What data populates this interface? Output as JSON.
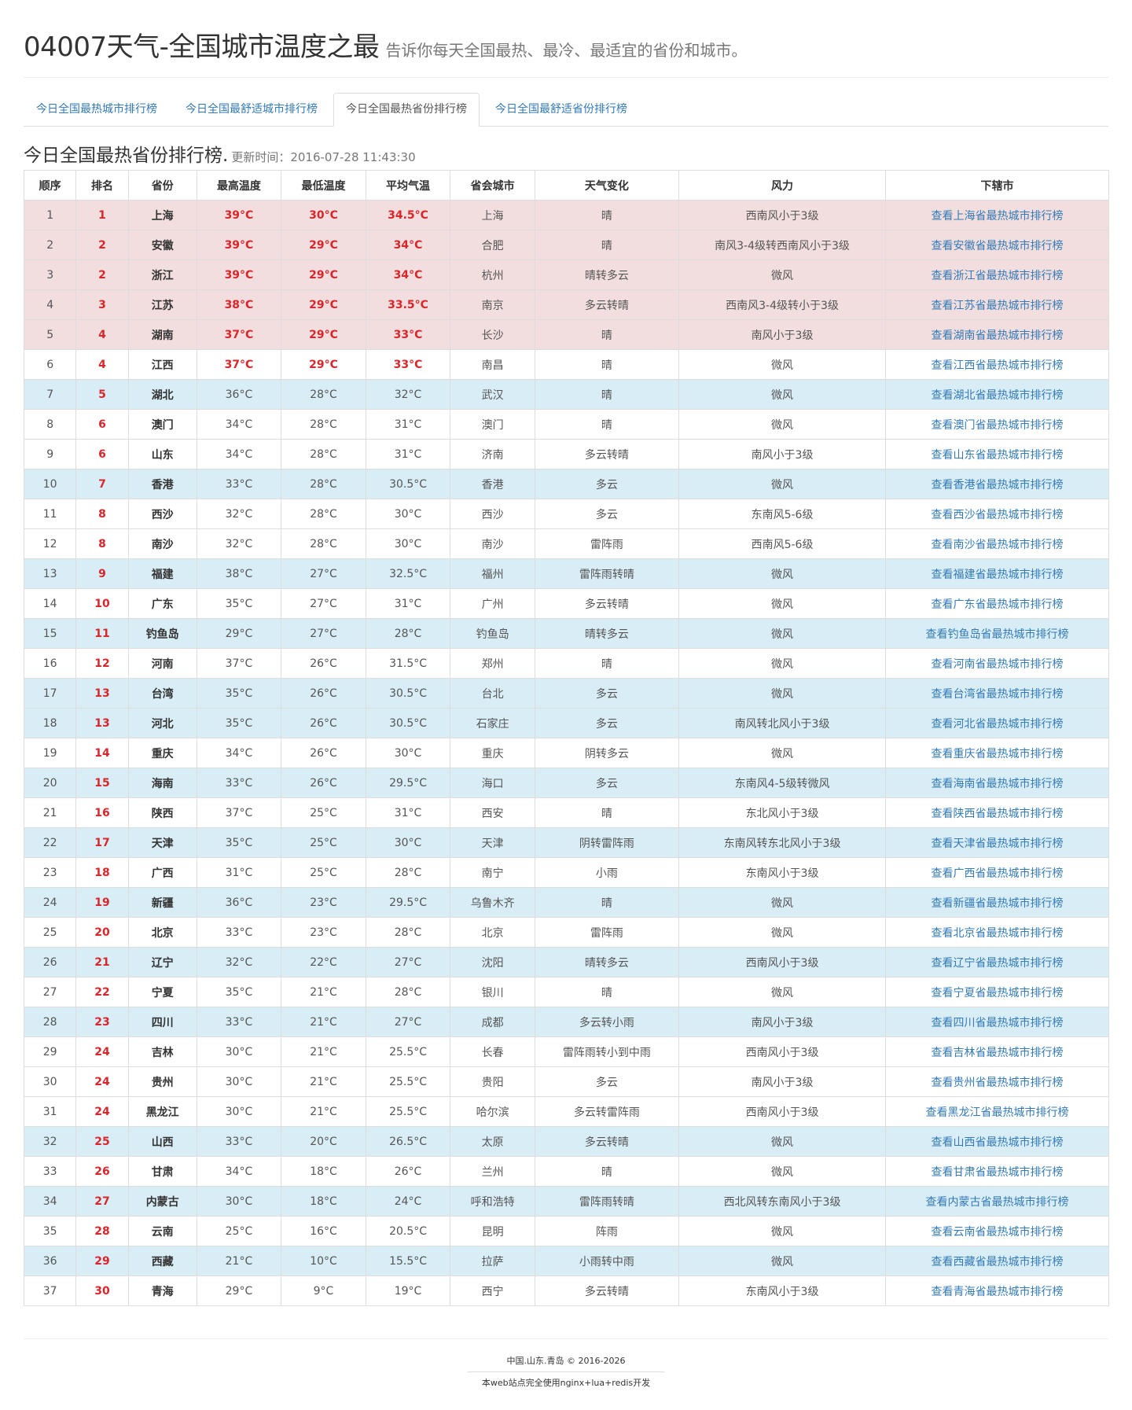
{
  "header": {
    "title": "04007天气-全国城市温度之最",
    "subtitle": "告诉你每天全国最热、最冷、最适宜的省份和城市。"
  },
  "tabs": [
    {
      "label": "今日全国最热城市排行榜",
      "active": false
    },
    {
      "label": "今日全国最舒适城市排行榜",
      "active": false
    },
    {
      "label": "今日全国最热省份排行榜",
      "active": true
    },
    {
      "label": "今日全国最舒适省份排行榜",
      "active": false
    }
  ],
  "section": {
    "title": "今日全国最热省份排行榜.",
    "updated": "更新时间：2016-07-28 11:43:30"
  },
  "table": {
    "columns": [
      "顺序",
      "排名",
      "省份",
      "最高温度",
      "最低温度",
      "平均气温",
      "省会城市",
      "天气变化",
      "风力",
      "下辖市"
    ],
    "rows": [
      {
        "seq": "1",
        "rank": "1",
        "province": "上海",
        "high": "39°C",
        "low": "30°C",
        "avg": "34.5°C",
        "capital": "上海",
        "weather": "晴",
        "wind": "西南风小于3级",
        "link": "查看上海省最热城市排行榜",
        "style": "danger"
      },
      {
        "seq": "2",
        "rank": "2",
        "province": "安徽",
        "high": "39°C",
        "low": "29°C",
        "avg": "34°C",
        "capital": "合肥",
        "weather": "晴",
        "wind": "南风3-4级转西南风小于3级",
        "link": "查看安徽省最热城市排行榜",
        "style": "danger"
      },
      {
        "seq": "3",
        "rank": "2",
        "province": "浙江",
        "high": "39°C",
        "low": "29°C",
        "avg": "34°C",
        "capital": "杭州",
        "weather": "晴转多云",
        "wind": "微风",
        "link": "查看浙江省最热城市排行榜",
        "style": "danger"
      },
      {
        "seq": "4",
        "rank": "3",
        "province": "江苏",
        "high": "38°C",
        "low": "29°C",
        "avg": "33.5°C",
        "capital": "南京",
        "weather": "多云转晴",
        "wind": "西南风3-4级转小于3级",
        "link": "查看江苏省最热城市排行榜",
        "style": "danger"
      },
      {
        "seq": "5",
        "rank": "4",
        "province": "湖南",
        "high": "37°C",
        "low": "29°C",
        "avg": "33°C",
        "capital": "长沙",
        "weather": "晴",
        "wind": "南风小于3级",
        "link": "查看湖南省最热城市排行榜",
        "style": "danger"
      },
      {
        "seq": "6",
        "rank": "4",
        "province": "江西",
        "high": "37°C",
        "low": "29°C",
        "avg": "33°C",
        "capital": "南昌",
        "weather": "晴",
        "wind": "微风",
        "link": "查看江西省最热城市排行榜",
        "style": "hot"
      },
      {
        "seq": "7",
        "rank": "5",
        "province": "湖北",
        "high": "36°C",
        "low": "28°C",
        "avg": "32°C",
        "capital": "武汉",
        "weather": "晴",
        "wind": "微风",
        "link": "查看湖北省最热城市排行榜",
        "style": "info"
      },
      {
        "seq": "8",
        "rank": "6",
        "province": "澳门",
        "high": "34°C",
        "low": "28°C",
        "avg": "31°C",
        "capital": "澳门",
        "weather": "晴",
        "wind": "微风",
        "link": "查看澳门省最热城市排行榜",
        "style": ""
      },
      {
        "seq": "9",
        "rank": "6",
        "province": "山东",
        "high": "34°C",
        "low": "28°C",
        "avg": "31°C",
        "capital": "济南",
        "weather": "多云转晴",
        "wind": "南风小于3级",
        "link": "查看山东省最热城市排行榜",
        "style": ""
      },
      {
        "seq": "10",
        "rank": "7",
        "province": "香港",
        "high": "33°C",
        "low": "28°C",
        "avg": "30.5°C",
        "capital": "香港",
        "weather": "多云",
        "wind": "微风",
        "link": "查看香港省最热城市排行榜",
        "style": "info"
      },
      {
        "seq": "11",
        "rank": "8",
        "province": "西沙",
        "high": "32°C",
        "low": "28°C",
        "avg": "30°C",
        "capital": "西沙",
        "weather": "多云",
        "wind": "东南风5-6级",
        "link": "查看西沙省最热城市排行榜",
        "style": ""
      },
      {
        "seq": "12",
        "rank": "8",
        "province": "南沙",
        "high": "32°C",
        "low": "28°C",
        "avg": "30°C",
        "capital": "南沙",
        "weather": "雷阵雨",
        "wind": "西南风5-6级",
        "link": "查看南沙省最热城市排行榜",
        "style": ""
      },
      {
        "seq": "13",
        "rank": "9",
        "province": "福建",
        "high": "38°C",
        "low": "27°C",
        "avg": "32.5°C",
        "capital": "福州",
        "weather": "雷阵雨转晴",
        "wind": "微风",
        "link": "查看福建省最热城市排行榜",
        "style": "info"
      },
      {
        "seq": "14",
        "rank": "10",
        "province": "广东",
        "high": "35°C",
        "low": "27°C",
        "avg": "31°C",
        "capital": "广州",
        "weather": "多云转晴",
        "wind": "微风",
        "link": "查看广东省最热城市排行榜",
        "style": ""
      },
      {
        "seq": "15",
        "rank": "11",
        "province": "钓鱼岛",
        "high": "29°C",
        "low": "27°C",
        "avg": "28°C",
        "capital": "钓鱼岛",
        "weather": "晴转多云",
        "wind": "微风",
        "link": "查看钓鱼岛省最热城市排行榜",
        "style": "info"
      },
      {
        "seq": "16",
        "rank": "12",
        "province": "河南",
        "high": "37°C",
        "low": "26°C",
        "avg": "31.5°C",
        "capital": "郑州",
        "weather": "晴",
        "wind": "微风",
        "link": "查看河南省最热城市排行榜",
        "style": ""
      },
      {
        "seq": "17",
        "rank": "13",
        "province": "台湾",
        "high": "35°C",
        "low": "26°C",
        "avg": "30.5°C",
        "capital": "台北",
        "weather": "多云",
        "wind": "微风",
        "link": "查看台湾省最热城市排行榜",
        "style": "info"
      },
      {
        "seq": "18",
        "rank": "13",
        "province": "河北",
        "high": "35°C",
        "low": "26°C",
        "avg": "30.5°C",
        "capital": "石家庄",
        "weather": "多云",
        "wind": "南风转北风小于3级",
        "link": "查看河北省最热城市排行榜",
        "style": "info"
      },
      {
        "seq": "19",
        "rank": "14",
        "province": "重庆",
        "high": "34°C",
        "low": "26°C",
        "avg": "30°C",
        "capital": "重庆",
        "weather": "阴转多云",
        "wind": "微风",
        "link": "查看重庆省最热城市排行榜",
        "style": ""
      },
      {
        "seq": "20",
        "rank": "15",
        "province": "海南",
        "high": "33°C",
        "low": "26°C",
        "avg": "29.5°C",
        "capital": "海口",
        "weather": "多云",
        "wind": "东南风4-5级转微风",
        "link": "查看海南省最热城市排行榜",
        "style": "info"
      },
      {
        "seq": "21",
        "rank": "16",
        "province": "陕西",
        "high": "37°C",
        "low": "25°C",
        "avg": "31°C",
        "capital": "西安",
        "weather": "晴",
        "wind": "东北风小于3级",
        "link": "查看陕西省最热城市排行榜",
        "style": ""
      },
      {
        "seq": "22",
        "rank": "17",
        "province": "天津",
        "high": "35°C",
        "low": "25°C",
        "avg": "30°C",
        "capital": "天津",
        "weather": "阴转雷阵雨",
        "wind": "东南风转东北风小于3级",
        "link": "查看天津省最热城市排行榜",
        "style": "info"
      },
      {
        "seq": "23",
        "rank": "18",
        "province": "广西",
        "high": "31°C",
        "low": "25°C",
        "avg": "28°C",
        "capital": "南宁",
        "weather": "小雨",
        "wind": "东南风小于3级",
        "link": "查看广西省最热城市排行榜",
        "style": ""
      },
      {
        "seq": "24",
        "rank": "19",
        "province": "新疆",
        "high": "36°C",
        "low": "23°C",
        "avg": "29.5°C",
        "capital": "乌鲁木齐",
        "weather": "晴",
        "wind": "微风",
        "link": "查看新疆省最热城市排行榜",
        "style": "info"
      },
      {
        "seq": "25",
        "rank": "20",
        "province": "北京",
        "high": "33°C",
        "low": "23°C",
        "avg": "28°C",
        "capital": "北京",
        "weather": "雷阵雨",
        "wind": "微风",
        "link": "查看北京省最热城市排行榜",
        "style": ""
      },
      {
        "seq": "26",
        "rank": "21",
        "province": "辽宁",
        "high": "32°C",
        "low": "22°C",
        "avg": "27°C",
        "capital": "沈阳",
        "weather": "晴转多云",
        "wind": "西南风小于3级",
        "link": "查看辽宁省最热城市排行榜",
        "style": "info"
      },
      {
        "seq": "27",
        "rank": "22",
        "province": "宁夏",
        "high": "35°C",
        "low": "21°C",
        "avg": "28°C",
        "capital": "银川",
        "weather": "晴",
        "wind": "微风",
        "link": "查看宁夏省最热城市排行榜",
        "style": ""
      },
      {
        "seq": "28",
        "rank": "23",
        "province": "四川",
        "high": "33°C",
        "low": "21°C",
        "avg": "27°C",
        "capital": "成都",
        "weather": "多云转小雨",
        "wind": "南风小于3级",
        "link": "查看四川省最热城市排行榜",
        "style": "info"
      },
      {
        "seq": "29",
        "rank": "24",
        "province": "吉林",
        "high": "30°C",
        "low": "21°C",
        "avg": "25.5°C",
        "capital": "长春",
        "weather": "雷阵雨转小到中雨",
        "wind": "西南风小于3级",
        "link": "查看吉林省最热城市排行榜",
        "style": ""
      },
      {
        "seq": "30",
        "rank": "24",
        "province": "贵州",
        "high": "30°C",
        "low": "21°C",
        "avg": "25.5°C",
        "capital": "贵阳",
        "weather": "多云",
        "wind": "南风小于3级",
        "link": "查看贵州省最热城市排行榜",
        "style": ""
      },
      {
        "seq": "31",
        "rank": "24",
        "province": "黑龙江",
        "high": "30°C",
        "low": "21°C",
        "avg": "25.5°C",
        "capital": "哈尔滨",
        "weather": "多云转雷阵雨",
        "wind": "西南风小于3级",
        "link": "查看黑龙江省最热城市排行榜",
        "style": ""
      },
      {
        "seq": "32",
        "rank": "25",
        "province": "山西",
        "high": "33°C",
        "low": "20°C",
        "avg": "26.5°C",
        "capital": "太原",
        "weather": "多云转晴",
        "wind": "微风",
        "link": "查看山西省最热城市排行榜",
        "style": "info"
      },
      {
        "seq": "33",
        "rank": "26",
        "province": "甘肃",
        "high": "34°C",
        "low": "18°C",
        "avg": "26°C",
        "capital": "兰州",
        "weather": "晴",
        "wind": "微风",
        "link": "查看甘肃省最热城市排行榜",
        "style": ""
      },
      {
        "seq": "34",
        "rank": "27",
        "province": "内蒙古",
        "high": "30°C",
        "low": "18°C",
        "avg": "24°C",
        "capital": "呼和浩特",
        "weather": "雷阵雨转晴",
        "wind": "西北风转东南风小于3级",
        "link": "查看内蒙古省最热城市排行榜",
        "style": "info"
      },
      {
        "seq": "35",
        "rank": "28",
        "province": "云南",
        "high": "25°C",
        "low": "16°C",
        "avg": "20.5°C",
        "capital": "昆明",
        "weather": "阵雨",
        "wind": "微风",
        "link": "查看云南省最热城市排行榜",
        "style": ""
      },
      {
        "seq": "36",
        "rank": "29",
        "province": "西藏",
        "high": "21°C",
        "low": "10°C",
        "avg": "15.5°C",
        "capital": "拉萨",
        "weather": "小雨转中雨",
        "wind": "微风",
        "link": "查看西藏省最热城市排行榜",
        "style": "info"
      },
      {
        "seq": "37",
        "rank": "30",
        "province": "青海",
        "high": "29°C",
        "low": "9°C",
        "avg": "19°C",
        "capital": "西宁",
        "weather": "多云转晴",
        "wind": "东南风小于3级",
        "link": "查看青海省最热城市排行榜",
        "style": ""
      }
    ]
  },
  "footer": {
    "copyright": "中国.山东.青岛 © 2016-2026",
    "tech": "本web站点完全使用nginx+lua+redis开发"
  },
  "colors": {
    "hot_text": "#d9262b",
    "danger_row": "#f2dede",
    "info_row": "#d9edf7",
    "link": "#337ab7"
  }
}
